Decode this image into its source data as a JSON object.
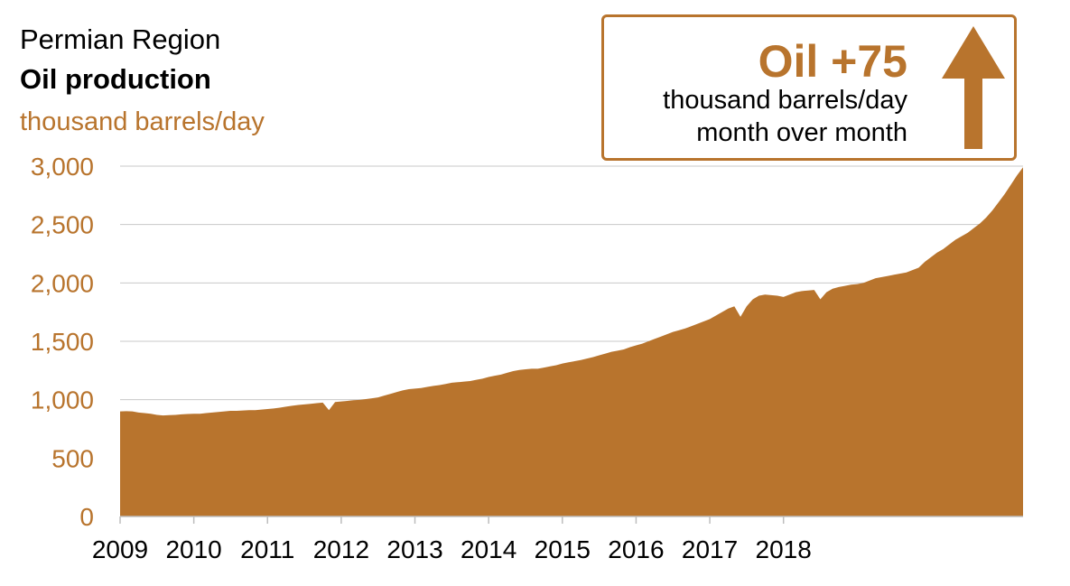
{
  "header": {
    "region": "Permian Region",
    "title": "Oil production",
    "unit": "thousand barrels/day"
  },
  "callout": {
    "headline": "Oil +75",
    "line1": "thousand barrels/day",
    "line2": "month over month",
    "icon": "up-arrow-icon",
    "color": "#b8742d"
  },
  "colors": {
    "accent": "#b8742d",
    "area_fill": "#b8742d",
    "grid": "#c8c8c8"
  },
  "chart_data": {
    "type": "area",
    "title": "Oil production",
    "ylabel": "thousand barrels/day",
    "ylim": [
      0,
      3000
    ],
    "y_ticks": [
      "0",
      "500",
      "1,000",
      "1,500",
      "2,000",
      "2,500",
      "3,000"
    ],
    "x_ticks": [
      "2009",
      "2010",
      "2011",
      "2012",
      "2013",
      "2014",
      "2015",
      "2016",
      "2017",
      "2018"
    ],
    "grid": true,
    "x_start": "2009-01",
    "x_end": "2018-03",
    "series": [
      {
        "values": [
          900,
          902,
          900,
          890,
          885,
          880,
          870,
          865,
          868,
          870,
          875,
          878,
          880,
          880,
          885,
          890,
          895,
          900,
          905,
          905,
          908,
          910,
          910,
          915,
          920,
          925,
          932,
          940,
          948,
          955,
          960,
          965,
          970,
          975,
          910,
          980,
          985,
          990,
          995,
          998,
          1005,
          1012,
          1020,
          1035,
          1050,
          1065,
          1080,
          1090,
          1095,
          1100,
          1110,
          1118,
          1125,
          1135,
          1145,
          1150,
          1155,
          1160,
          1170,
          1180,
          1195,
          1205,
          1215,
          1230,
          1245,
          1255,
          1260,
          1265,
          1265,
          1275,
          1285,
          1295,
          1310,
          1320,
          1330,
          1340,
          1352,
          1365,
          1380,
          1395,
          1410,
          1420,
          1430,
          1450,
          1465,
          1480,
          1500,
          1520,
          1540,
          1560,
          1580,
          1595,
          1610,
          1630,
          1650,
          1670,
          1690,
          1720,
          1750,
          1780,
          1800,
          1710,
          1800,
          1860,
          1890,
          1900,
          1895,
          1890,
          1880,
          1900,
          1920,
          1930,
          1935,
          1940,
          1860,
          1920,
          1950,
          1965,
          1975,
          1985,
          1990,
          2000,
          2020,
          2040,
          2050,
          2060,
          2070,
          2080,
          2090,
          2110,
          2130,
          2180,
          2220,
          2260,
          2290,
          2330,
          2370,
          2400,
          2430,
          2470,
          2510,
          2560,
          2620,
          2690,
          2760,
          2840,
          2920,
          2990
        ]
      }
    ]
  }
}
